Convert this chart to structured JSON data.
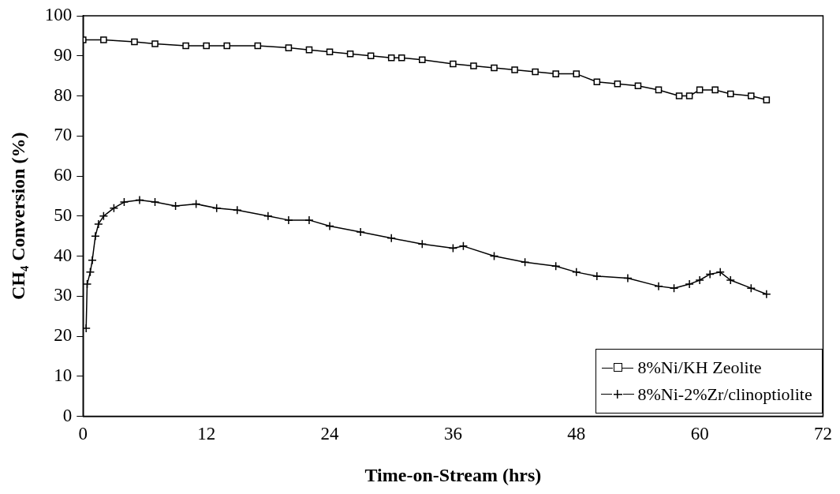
{
  "chart_data": {
    "type": "line",
    "xlabel": "Time-on-Stream (hrs)",
    "ylabel": "CH₄ Conversion (%)",
    "xlim": [
      0,
      72
    ],
    "xticks": [
      0,
      12,
      24,
      36,
      48,
      60,
      72
    ],
    "ylim": [
      0,
      100
    ],
    "yticks": [
      0,
      10,
      20,
      30,
      40,
      50,
      60,
      70,
      80,
      90,
      100
    ],
    "grid": false,
    "legend": "bottom right",
    "line_style": "solid",
    "series": [
      {
        "name": "8%Ni/KH Zeolite",
        "color": "#000000",
        "marker": "square",
        "x": [
          0,
          2,
          5,
          7,
          10,
          12,
          14,
          17,
          20,
          22,
          24,
          26,
          28,
          30,
          31,
          33,
          36,
          38,
          40,
          42,
          44,
          46,
          48,
          50,
          52,
          54,
          56,
          58,
          59,
          60,
          61.5,
          63,
          65,
          66.5
        ],
        "values": [
          94,
          94,
          93.5,
          93,
          92.5,
          92.5,
          92.5,
          92.5,
          92,
          91.5,
          91,
          90.5,
          90,
          89.5,
          89.5,
          89,
          88,
          87.5,
          87,
          86.5,
          86,
          85.5,
          85.5,
          83.5,
          83,
          82.5,
          81.5,
          80,
          80,
          81.5,
          81.5,
          80.5,
          80,
          79
        ]
      },
      {
        "name": "8%Ni-2%Zr/clinoptiolite",
        "color": "#000000",
        "marker": "cross",
        "x": [
          0.3,
          0.4,
          0.7,
          0.9,
          1.2,
          1.5,
          2,
          3,
          4,
          5.5,
          7,
          9,
          11,
          13,
          15,
          18,
          20,
          22,
          24,
          27,
          30,
          33,
          36,
          37,
          40,
          43,
          46,
          48,
          50,
          53,
          56,
          57.5,
          59,
          60,
          61,
          62,
          63,
          65,
          66.5
        ],
        "values": [
          22,
          33,
          36,
          39,
          45,
          48,
          50,
          52,
          53.5,
          54,
          53.5,
          52.5,
          53,
          52,
          51.5,
          50,
          49,
          49,
          47.5,
          46,
          44.5,
          43,
          42,
          42.5,
          40,
          38.5,
          37.5,
          36,
          35,
          34.5,
          32.5,
          32,
          33,
          34,
          35.5,
          36,
          34,
          32,
          30.5
        ]
      }
    ]
  }
}
